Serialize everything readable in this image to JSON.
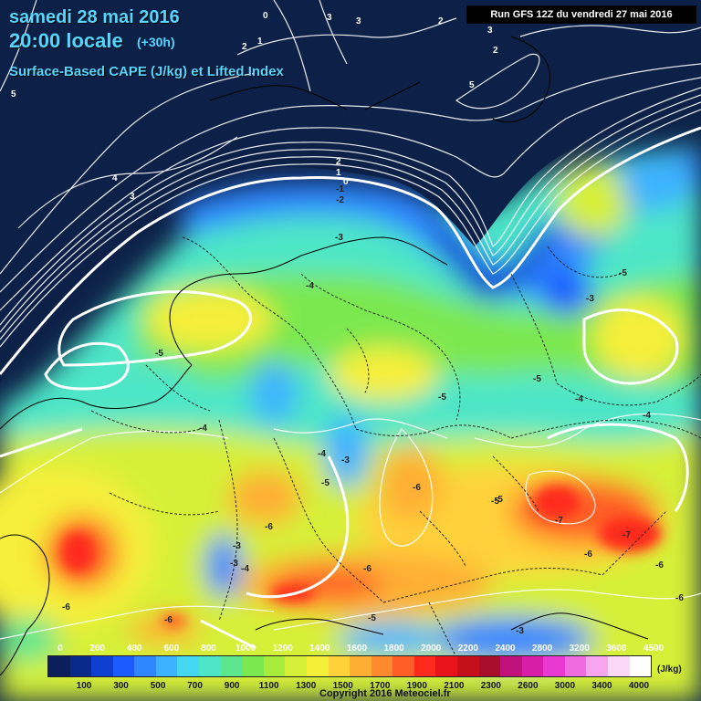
{
  "header": {
    "date": "samedi 28 mai 2016",
    "time": "20:00 locale",
    "offset": "(+30h)",
    "parameter": "Surface-Based CAPE (J/kg) et Lifted Index",
    "run": "Run GFS 12Z du vendredi 27 mai 2016"
  },
  "legend": {
    "top_labels": [
      "0",
      "200",
      "400",
      "600",
      "800",
      "1000",
      "1200",
      "1400",
      "1600",
      "1800",
      "2000",
      "2200",
      "2400",
      "2800",
      "3200",
      "3600",
      "4500"
    ],
    "bottom_labels": [
      "100",
      "300",
      "500",
      "700",
      "900",
      "1100",
      "1300",
      "1500",
      "1700",
      "1900",
      "2100",
      "2300",
      "2600",
      "3000",
      "3400",
      "4000"
    ],
    "unit": "(J/kg)",
    "colors": [
      "#0a1f5c",
      "#0a2a8a",
      "#0d3fd0",
      "#1a5cff",
      "#2f86ff",
      "#3db2ff",
      "#45d7f2",
      "#4de6c8",
      "#5ee68f",
      "#7be84f",
      "#a8ec3c",
      "#d5f038",
      "#f6ef3a",
      "#ffd23a",
      "#ffae34",
      "#ff8a2e",
      "#ff5f26",
      "#ff2a1e",
      "#e8141c",
      "#c4101a",
      "#a60e2a",
      "#c0107a",
      "#d81ea8",
      "#e83ad0",
      "#f06be0",
      "#f7a6ee",
      "#fcd8f7",
      "#ffffff"
    ]
  },
  "map_labels": {
    "lifted_index": [
      "0",
      "3",
      "3",
      "2",
      "2",
      "3",
      "2",
      "1",
      "5",
      "5",
      "4",
      "3",
      "2",
      "1",
      "0",
      "-1",
      "-2",
      "-3",
      "-4",
      "-5",
      "-5",
      "-5",
      "-5",
      "-4",
      "-4",
      "-4",
      "-3",
      "-3",
      "-3",
      "-6",
      "-5",
      "-6",
      "-6",
      "-7",
      "-7",
      "-6",
      "-6",
      "-5",
      "-4",
      "-3",
      "-5",
      "-6",
      "-6",
      "-6",
      "-3",
      "-4",
      "-5"
    ]
  },
  "copyright": "Copyright 2016 Meteociel.fr"
}
